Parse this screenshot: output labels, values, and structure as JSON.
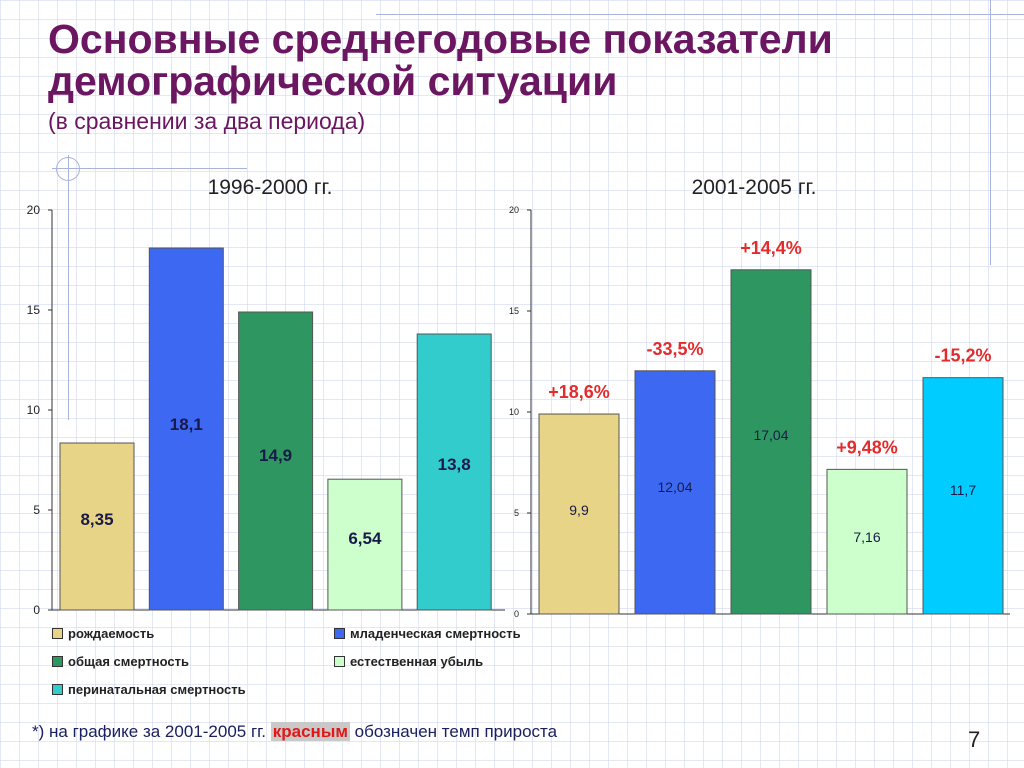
{
  "slide": {
    "title_line1": "Основные среднегодовые показатели",
    "title_line2": "демографической ситуации",
    "subtitle": "(в сравнении за два периода)",
    "footnote_before": "*) на графике за 2001-2005 гг.",
    "footnote_red": "красным",
    "footnote_after": "обозначен темп прироста",
    "page_number": "7"
  },
  "chart_data": [
    {
      "type": "bar",
      "title": "1996-2000 гг.",
      "categories": [
        "рождаемость",
        "младенческая смертность",
        "общая смертность",
        "естественная убыль",
        "перинатальная смертность"
      ],
      "values": [
        8.35,
        18.1,
        14.9,
        6.54,
        13.8
      ],
      "value_labels": [
        "8,35",
        "18,1",
        "14,9",
        "6,54",
        "13,8"
      ],
      "colors": [
        "#e8d487",
        "#3c68f2",
        "#2e9660",
        "#ccffcc",
        "#33cccc"
      ],
      "ylim": [
        0,
        20
      ],
      "yticks": [
        0,
        5,
        10,
        15,
        20
      ],
      "grid": false
    },
    {
      "type": "bar",
      "title": "2001-2005 гг.",
      "categories": [
        "рождаемость",
        "младенческая смертность",
        "общая смертность",
        "естественная убыль",
        "перинатальная смертность"
      ],
      "values": [
        9.9,
        12.04,
        17.04,
        7.16,
        11.7
      ],
      "value_labels": [
        "9,9",
        "12,04",
        "17,04",
        "7,16",
        "11,7"
      ],
      "growth_labels": [
        "+18,6%",
        "-33,5%",
        "+14,4%",
        "+9,48%",
        "-15,2%"
      ],
      "colors": [
        "#e8d487",
        "#3c68f2",
        "#2e9660",
        "#ccffcc",
        "#00ccff"
      ],
      "ylim": [
        0,
        20
      ],
      "yticks": [
        0,
        5,
        10,
        15,
        20
      ],
      "grid": false
    }
  ],
  "legend": [
    {
      "label": "рождаемость",
      "color": "#e8d487"
    },
    {
      "label": "младенческая смертность",
      "color": "#3c68f2"
    },
    {
      "label": "общая смертность",
      "color": "#2e9660"
    },
    {
      "label": "естественная убыль",
      "color": "#ccffcc"
    },
    {
      "label": "перинатальная смертность",
      "color": "#33cccc"
    }
  ]
}
